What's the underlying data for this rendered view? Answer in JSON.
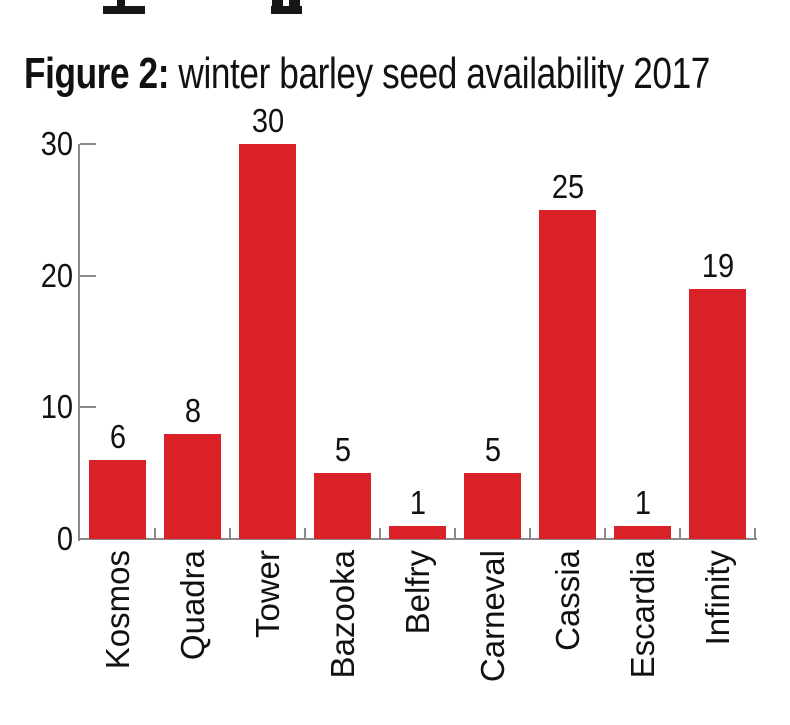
{
  "title": {
    "prefix": "Figure 2:",
    "rest": " winter barley seed availability 2017"
  },
  "chart_data": {
    "type": "bar",
    "title": "Figure 2: winter barley seed availability 2017",
    "categories": [
      "Kosmos",
      "Quadra",
      "Tower",
      "Bazooka",
      "Belfry",
      "Carneval",
      "Cassia",
      "Escardia",
      "Infinity"
    ],
    "values": [
      6,
      8,
      30,
      5,
      1,
      5,
      25,
      1,
      19
    ],
    "value_labels": [
      "6",
      "8",
      "30",
      "5",
      "1",
      "5",
      "25",
      "1",
      "19"
    ],
    "xlabel": "",
    "ylabel": "",
    "ylim": [
      0,
      30
    ],
    "yticks": [
      0,
      10,
      20,
      30
    ],
    "bar_color": "#d92127",
    "axis_color": "#8a8a8a",
    "text_color": "#111111",
    "grid": false,
    "legend": false,
    "category_label_rotation": -90,
    "value_labels_shown": true
  }
}
